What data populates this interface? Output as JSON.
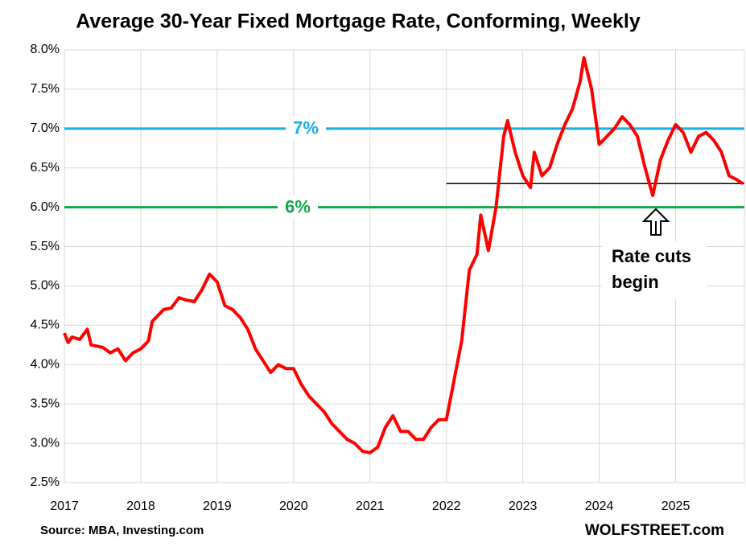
{
  "chart_data": {
    "type": "line",
    "title": "Average 30-Year Fixed Mortgage Rate, Conforming, Weekly",
    "x": [
      2017.0,
      2017.05,
      2017.1,
      2017.2,
      2017.3,
      2017.35,
      2017.5,
      2017.6,
      2017.7,
      2017.8,
      2017.9,
      2018.0,
      2018.1,
      2018.15,
      2018.3,
      2018.4,
      2018.5,
      2018.6,
      2018.7,
      2018.8,
      2018.9,
      2019.0,
      2019.1,
      2019.2,
      2019.3,
      2019.4,
      2019.5,
      2019.6,
      2019.7,
      2019.8,
      2019.9,
      2020.0,
      2020.1,
      2020.2,
      2020.3,
      2020.4,
      2020.5,
      2020.6,
      2020.7,
      2020.8,
      2020.9,
      2021.0,
      2021.1,
      2021.2,
      2021.3,
      2021.4,
      2021.5,
      2021.6,
      2021.7,
      2021.8,
      2021.9,
      2022.0,
      2022.1,
      2022.2,
      2022.3,
      2022.4,
      2022.45,
      2022.55,
      2022.65,
      2022.75,
      2022.8,
      2022.9,
      2023.0,
      2023.1,
      2023.15,
      2023.25,
      2023.35,
      2023.45,
      2023.55,
      2023.65,
      2023.75,
      2023.8,
      2023.9,
      2024.0,
      2024.1,
      2024.2,
      2024.3,
      2024.4,
      2024.5,
      2024.6,
      2024.7,
      2024.8,
      2024.9,
      2025.0,
      2025.1,
      2025.2,
      2025.3,
      2025.4,
      2025.5,
      2025.6,
      2025.7,
      2025.8,
      2025.88
    ],
    "series": [
      {
        "color": "#ff0000",
        "values": [
          4.4,
          4.28,
          4.35,
          4.32,
          4.45,
          4.25,
          4.22,
          4.15,
          4.2,
          4.05,
          4.15,
          4.2,
          4.3,
          4.55,
          4.7,
          4.72,
          4.85,
          4.82,
          4.8,
          4.95,
          5.15,
          5.05,
          4.75,
          4.7,
          4.6,
          4.45,
          4.2,
          4.05,
          3.9,
          4.0,
          3.95,
          3.95,
          3.75,
          3.6,
          3.5,
          3.4,
          3.25,
          3.15,
          3.05,
          3.0,
          2.9,
          2.88,
          2.95,
          3.2,
          3.35,
          3.15,
          3.15,
          3.05,
          3.05,
          3.2,
          3.3,
          3.3,
          3.8,
          4.3,
          5.2,
          5.4,
          5.9,
          5.45,
          6.0,
          6.9,
          7.1,
          6.7,
          6.4,
          6.25,
          6.7,
          6.4,
          6.5,
          6.8,
          7.05,
          7.25,
          7.6,
          7.9,
          7.5,
          6.8,
          6.9,
          7.0,
          7.15,
          7.05,
          6.9,
          6.5,
          6.15,
          6.6,
          6.85,
          7.05,
          6.95,
          6.7,
          6.9,
          6.95,
          6.85,
          6.7,
          6.4,
          6.35,
          6.3
        ]
      }
    ],
    "xlim": [
      2017,
      2025.9
    ],
    "xticks": [
      2017,
      2018,
      2019,
      2020,
      2021,
      2022,
      2023,
      2024,
      2025
    ],
    "ylim": [
      2.5,
      8.0
    ],
    "yticks": [
      {
        "value": 2.5,
        "label": "2.5%"
      },
      {
        "value": 3.0,
        "label": "3.0%"
      },
      {
        "value": 3.5,
        "label": "3.5%"
      },
      {
        "value": 4.0,
        "label": "4.0%"
      },
      {
        "value": 4.5,
        "label": "4.5%"
      },
      {
        "value": 5.0,
        "label": "5.0%"
      },
      {
        "value": 5.5,
        "label": "5.5%"
      },
      {
        "value": 6.0,
        "label": "6.0%"
      },
      {
        "value": 6.5,
        "label": "6.5%"
      },
      {
        "value": 7.0,
        "label": "7.0%"
      },
      {
        "value": 7.5,
        "label": "7.5%"
      },
      {
        "value": 8.0,
        "label": "8.0%"
      }
    ],
    "grid": true,
    "hlines": [
      {
        "value": 7,
        "label": "7%",
        "color": "#1aaee8"
      },
      {
        "value": 6,
        "label": "6%",
        "color": "#10a84a"
      }
    ],
    "reference_segment": {
      "value": 6.3,
      "x": [
        2022,
        2025.9
      ],
      "color": "#000000"
    },
    "annotation": [
      "Rate cuts",
      "begin"
    ],
    "source": "Source: MBA, Investing.com",
    "watermark": "WOLFSTREET.com"
  }
}
